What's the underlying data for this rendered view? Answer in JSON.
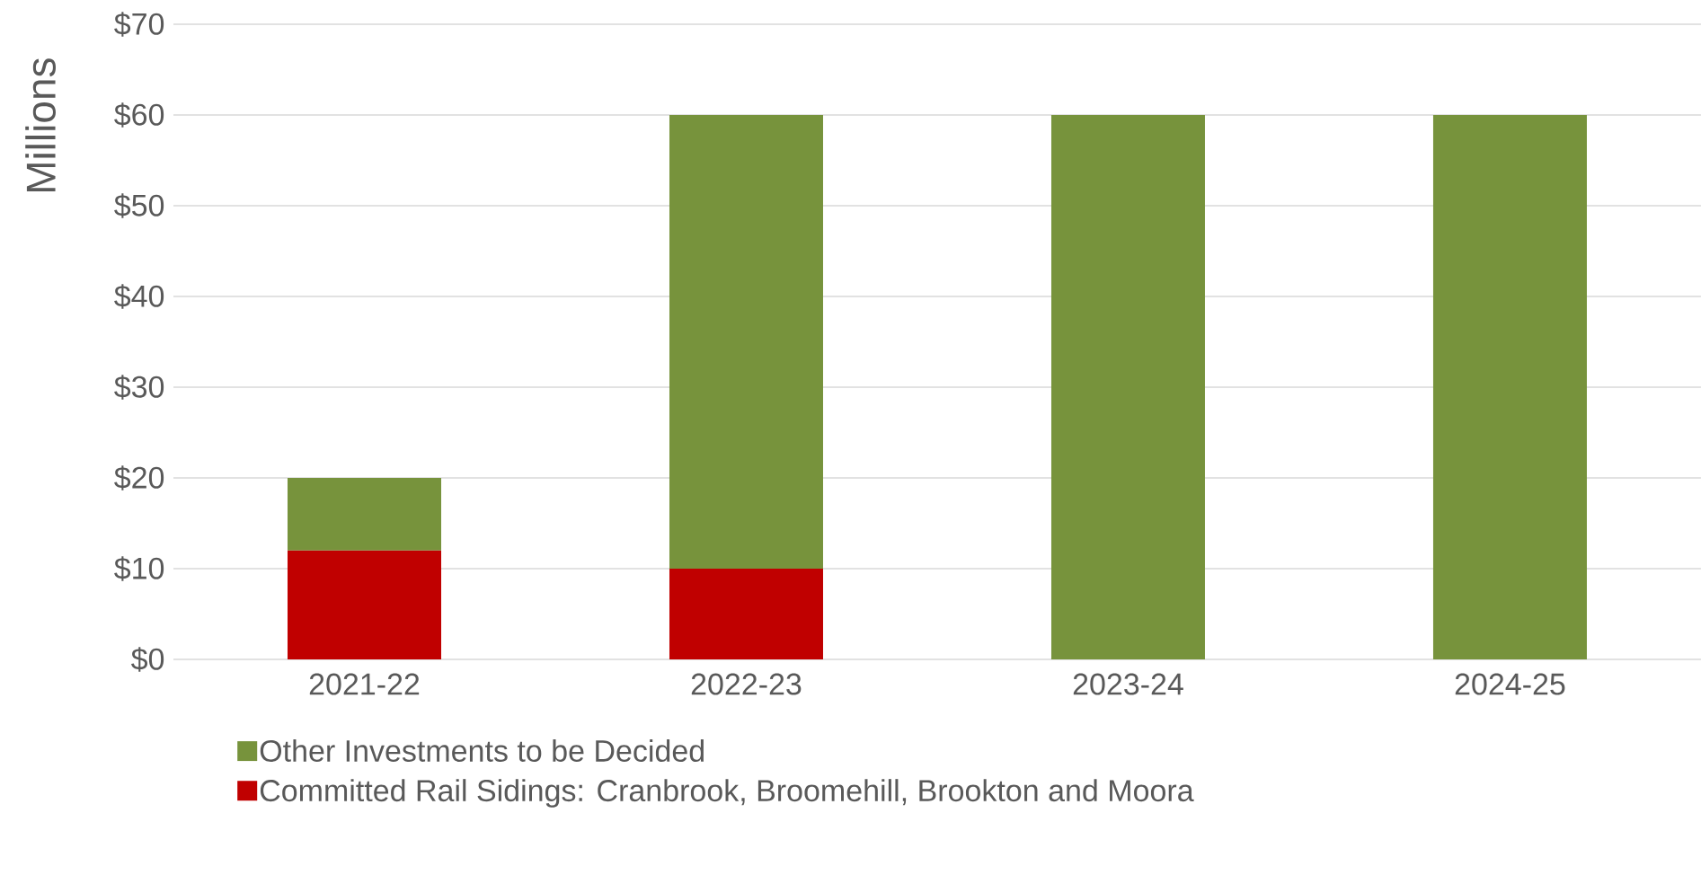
{
  "chart_data": {
    "type": "bar",
    "stacked": true,
    "ylabel": "Millions",
    "categories": [
      "2021-22",
      "2022-23",
      "2023-24",
      "2024-25"
    ],
    "series": [
      {
        "name": "Committed Rail Sidings: Cranbrook, Broomehill, Brookton and Moora",
        "color": "#c00000",
        "values": [
          12,
          10,
          0,
          0
        ]
      },
      {
        "name": "Other Investments to be Decided",
        "color": "#77933c",
        "values": [
          8,
          50,
          60,
          60
        ]
      }
    ],
    "ylim": [
      0,
      70
    ],
    "yticks": [
      {
        "value": 0,
        "label": "$0"
      },
      {
        "value": 10,
        "label": "$10"
      },
      {
        "value": 20,
        "label": "$20"
      },
      {
        "value": 30,
        "label": "$30"
      },
      {
        "value": 40,
        "label": "$40"
      },
      {
        "value": 50,
        "label": "$50"
      },
      {
        "value": 60,
        "label": "$60"
      },
      {
        "value": 70,
        "label": "$70"
      }
    ],
    "grid": "y",
    "legend": "bottom"
  }
}
